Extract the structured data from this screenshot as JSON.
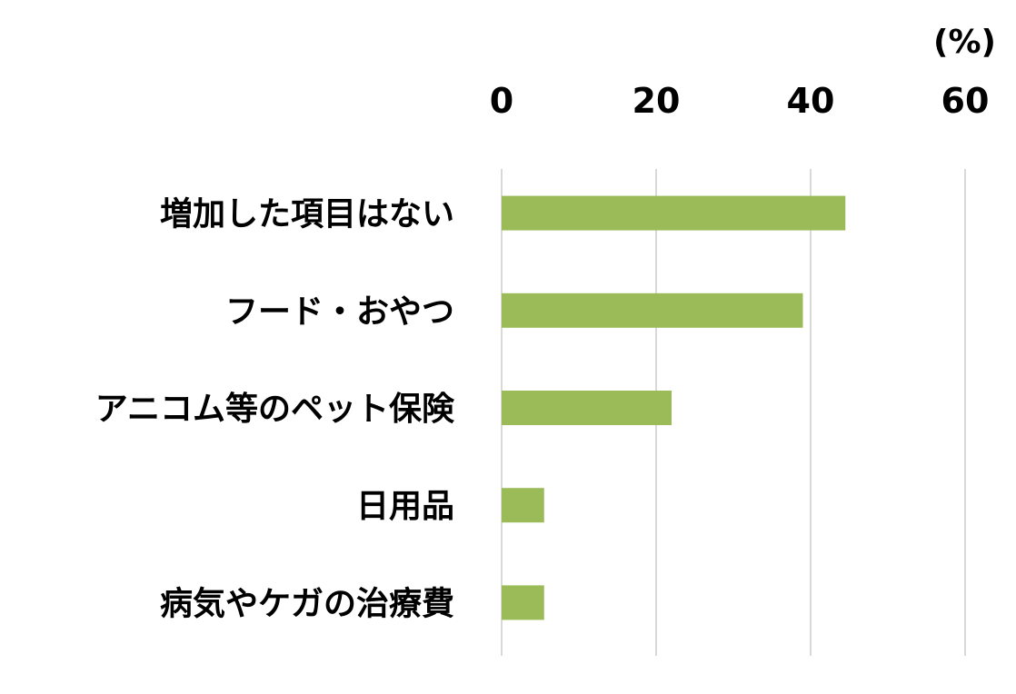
{
  "chart_data": {
    "type": "bar",
    "orientation": "horizontal",
    "unit_label": "(%)",
    "categories": [
      "増加した項目はない",
      "フード・おやつ",
      "アニコム等のペット保険",
      "日用品",
      "病気やケガの治療費"
    ],
    "values": [
      44.5,
      39,
      22,
      5.5,
      5.5
    ],
    "x_ticks": [
      "0",
      "20",
      "40",
      "60"
    ],
    "xlim": [
      0,
      60
    ],
    "grid": true,
    "axis_position": "top",
    "bar_color": "#9bbb59",
    "gridline_color": "#d9d9d9"
  }
}
